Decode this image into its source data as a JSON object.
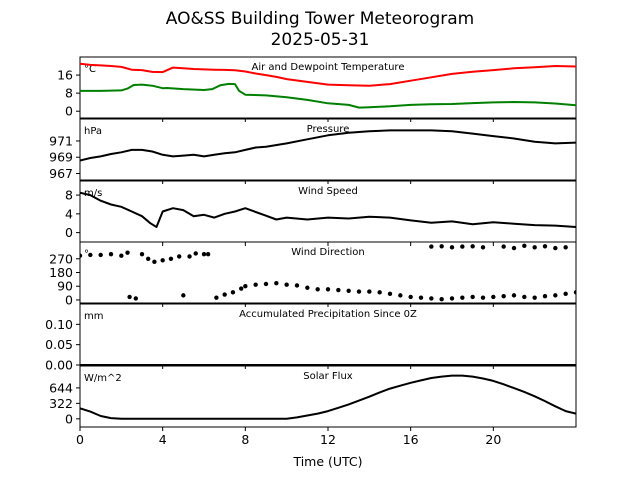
{
  "figure": {
    "title_line1": "AO&SS Building Tower Meteorogram",
    "title_line2": "2025-05-31",
    "xlabel": "Time (UTC)"
  },
  "x_axis": {
    "range": [
      0,
      24
    ],
    "ticks": [
      0,
      4,
      8,
      12,
      16,
      20
    ],
    "tick_labels": [
      "0",
      "4",
      "8",
      "12",
      "16",
      "20"
    ]
  },
  "chart_data": [
    {
      "type": "line",
      "title": "Air and Dewpoint Temperature",
      "unit_label": "°C",
      "ylim": [
        -3,
        24
      ],
      "yticks": [
        0,
        8,
        16
      ],
      "ytick_labels": [
        "0",
        "8",
        "16"
      ],
      "colors": {
        "air": "#ff0000",
        "dewpoint": "#008000"
      },
      "series": [
        {
          "key": "air",
          "x": [
            0,
            0.5,
            1,
            1.5,
            2,
            2.5,
            3,
            3.5,
            4,
            4.5,
            5,
            5.5,
            6,
            6.5,
            7,
            7.5,
            8,
            8.5,
            9,
            9.5,
            10,
            11,
            12,
            13,
            14,
            15,
            16,
            17,
            18,
            19,
            20,
            21,
            22,
            23,
            24
          ],
          "values": [
            21,
            20.5,
            20.3,
            20,
            19.6,
            18.4,
            18.2,
            17.4,
            17.3,
            19.3,
            19,
            18.7,
            18.5,
            18.4,
            18.3,
            18.1,
            17.6,
            16.7,
            16,
            15.2,
            14.2,
            13,
            11.8,
            11.5,
            11.3,
            12,
            13.5,
            15,
            16.5,
            17.5,
            18.2,
            19,
            19.5,
            20,
            19.8
          ]
        },
        {
          "key": "dewpoint",
          "x": [
            0,
            1,
            2,
            2.3,
            2.6,
            3,
            3.5,
            4,
            4.2,
            5,
            6,
            6.4,
            6.8,
            7.2,
            7.5,
            7.7,
            8,
            9,
            10,
            11,
            12,
            13,
            13.5,
            14,
            15,
            16,
            17,
            18,
            19,
            20,
            21,
            22,
            23,
            24
          ],
          "values": [
            9,
            9,
            9.2,
            10,
            11.6,
            11.8,
            11.3,
            10.2,
            10.3,
            9.8,
            9.4,
            9.8,
            11.5,
            12.1,
            12,
            9,
            7.3,
            7,
            6.2,
            5,
            3.5,
            2.8,
            1.6,
            1.8,
            2.2,
            2.8,
            3.1,
            3.2,
            3.6,
            3.9,
            4.1,
            3.9,
            3.4,
            2.6
          ]
        }
      ]
    },
    {
      "type": "line",
      "title": "Pressure",
      "unit_label": "hPa",
      "ylim": [
        966.2,
        973.7
      ],
      "yticks": [
        967,
        969,
        971
      ],
      "ytick_labels": [
        "967",
        "969",
        "971"
      ],
      "series": [
        {
          "key": "pressure",
          "x": [
            0,
            0.5,
            1,
            1.5,
            2,
            2.5,
            3,
            3.5,
            4,
            4.5,
            5,
            5.5,
            6,
            6.5,
            7,
            7.5,
            8,
            8.5,
            9,
            10,
            11,
            12,
            13,
            14,
            15,
            16,
            17,
            18,
            19,
            20,
            21,
            22,
            23,
            24
          ],
          "values": [
            968.6,
            968.9,
            969.1,
            969.4,
            969.6,
            969.9,
            969.9,
            969.7,
            969.3,
            969.1,
            969.2,
            969.3,
            969.1,
            969.3,
            969.5,
            969.6,
            969.9,
            970.2,
            970.3,
            970.7,
            971.2,
            971.7,
            972.0,
            972.2,
            972.3,
            972.3,
            972.3,
            972.2,
            971.9,
            971.6,
            971.3,
            970.9,
            970.7,
            970.8
          ]
        }
      ]
    },
    {
      "type": "line",
      "title": "Wind Speed",
      "unit_label": "m/s",
      "ylim": [
        -2,
        11
      ],
      "yticks": [
        0,
        4,
        8
      ],
      "ytick_labels": [
        "0",
        "4",
        "8"
      ],
      "series": [
        {
          "key": "wind_speed",
          "x": [
            0,
            0.5,
            1,
            1.5,
            2,
            2.5,
            3,
            3.4,
            3.7,
            4,
            4.5,
            5,
            5.5,
            6,
            6.5,
            7,
            7.5,
            8,
            8.5,
            9,
            9.5,
            10,
            11,
            12,
            13,
            14,
            15,
            16,
            17,
            18,
            19,
            20,
            21,
            22,
            23,
            24
          ],
          "values": [
            8.5,
            8,
            6.8,
            6,
            5.5,
            4.5,
            3.5,
            2,
            1.2,
            4.5,
            5.2,
            4.8,
            3.5,
            3.8,
            3.2,
            4,
            4.5,
            5.2,
            4.4,
            3.6,
            2.8,
            3.2,
            2.8,
            3.2,
            3,
            3.4,
            3.2,
            2.6,
            2.1,
            2.4,
            1.8,
            2.2,
            1.9,
            1.6,
            1.5,
            1.2
          ]
        }
      ]
    },
    {
      "type": "scatter",
      "title": "Wind Direction",
      "unit_label": "°",
      "ylim": [
        -20,
        380
      ],
      "yticks": [
        0,
        90,
        180,
        270
      ],
      "ytick_labels": [
        "0",
        "90",
        "180",
        "270"
      ],
      "series": [
        {
          "key": "wind_direction_a",
          "x": [
            0,
            0.5,
            1,
            1.5,
            2,
            2.3,
            3,
            3.3,
            3.6,
            4,
            4.4,
            4.8,
            5.3,
            5.6,
            6,
            6.2
          ],
          "values": [
            290,
            295,
            295,
            300,
            290,
            310,
            300,
            270,
            250,
            260,
            270,
            285,
            285,
            305,
            300,
            300
          ]
        },
        {
          "key": "wind_direction_b",
          "x": [
            2.4,
            2.7,
            5,
            6.6,
            7,
            7.4,
            7.8,
            8,
            8.5,
            9,
            9.5,
            10,
            10.5,
            11,
            11.5,
            12,
            12.5,
            13,
            13.5,
            14,
            14.5,
            15,
            15.5,
            16,
            16.5,
            17,
            17.5,
            18,
            18.5,
            19,
            19.5,
            20,
            20.5,
            21,
            21.5,
            22,
            22.5,
            23,
            23.5,
            24
          ],
          "values": [
            20,
            10,
            30,
            15,
            35,
            50,
            75,
            90,
            100,
            105,
            110,
            100,
            95,
            80,
            70,
            70,
            65,
            60,
            55,
            55,
            50,
            40,
            30,
            20,
            15,
            10,
            5,
            10,
            15,
            20,
            15,
            20,
            25,
            30,
            20,
            15,
            25,
            30,
            40,
            50
          ]
        },
        {
          "key": "wind_direction_c",
          "x": [
            17,
            17.5,
            18,
            18.5,
            19,
            19.5,
            20.5,
            21,
            21.5,
            22,
            22.5,
            23,
            23.5
          ],
          "values": [
            350,
            352,
            345,
            350,
            352,
            345,
            350,
            340,
            355,
            345,
            352,
            340,
            345
          ]
        }
      ]
    },
    {
      "type": "line",
      "title": "Accumulated Precipitation Since 0Z",
      "unit_label": "mm",
      "ylim": [
        0,
        0.15
      ],
      "yticks": [
        0,
        0.05,
        0.1
      ],
      "ytick_labels": [
        "0.00",
        "0.05",
        "0.10"
      ],
      "series": [
        {
          "key": "precipitation",
          "x": [
            0,
            24
          ],
          "values": [
            0,
            0
          ]
        }
      ]
    },
    {
      "type": "line",
      "title": "Solar Flux",
      "unit_label": "W/m^2",
      "ylim": [
        -170,
        1100
      ],
      "yticks": [
        0,
        322,
        644
      ],
      "ytick_labels": [
        "0",
        "322",
        "644"
      ],
      "series": [
        {
          "key": "solar_flux",
          "x": [
            0,
            0.5,
            1,
            1.5,
            2,
            4,
            6,
            8,
            10,
            10.5,
            11,
            11.5,
            12,
            12.5,
            13,
            13.5,
            14,
            14.5,
            15,
            15.5,
            16,
            16.5,
            17,
            17.5,
            18,
            18.5,
            19,
            19.5,
            20,
            20.5,
            21,
            21.5,
            22,
            22.5,
            23,
            23.5,
            24
          ],
          "values": [
            220,
            150,
            60,
            15,
            0,
            0,
            0,
            0,
            0,
            30,
            70,
            110,
            160,
            230,
            300,
            380,
            460,
            550,
            630,
            690,
            750,
            800,
            850,
            880,
            900,
            900,
            880,
            840,
            790,
            720,
            640,
            560,
            470,
            370,
            260,
            160,
            110
          ]
        }
      ]
    }
  ]
}
